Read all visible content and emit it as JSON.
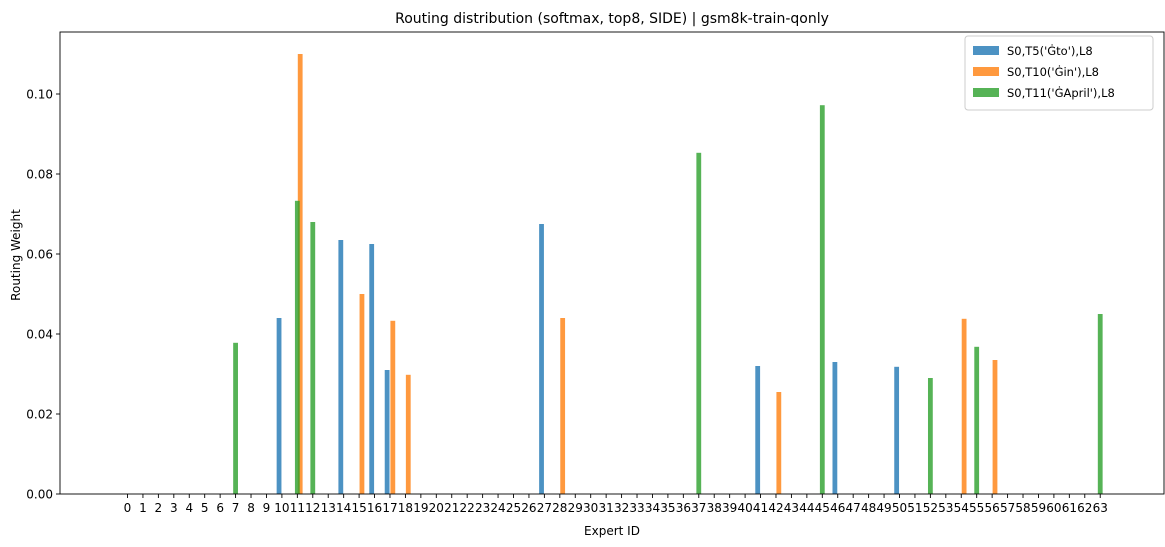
{
  "chart_data": {
    "type": "bar",
    "title": "Routing distribution (softmax, top8, SIDE) | gsm8k-train-qonly",
    "xlabel": "Expert ID",
    "ylabel": "Routing Weight",
    "ylim": [
      0,
      0.1155
    ],
    "yticks": [
      "0.00",
      "0.02",
      "0.04",
      "0.06",
      "0.08",
      "0.10"
    ],
    "categories": [
      "0",
      "1",
      "2",
      "3",
      "4",
      "5",
      "6",
      "7",
      "8",
      "9",
      "10",
      "11",
      "12",
      "13",
      "14",
      "15",
      "16",
      "17",
      "18",
      "19",
      "20",
      "21",
      "22",
      "23",
      "24",
      "25",
      "26",
      "27",
      "28",
      "29",
      "30",
      "31",
      "32",
      "33",
      "34",
      "35",
      "36",
      "37",
      "38",
      "39",
      "40",
      "41",
      "42",
      "43",
      "44",
      "45",
      "46",
      "47",
      "48",
      "49",
      "50",
      "51",
      "52",
      "53",
      "54",
      "55",
      "56",
      "57",
      "58",
      "59",
      "60",
      "61",
      "62",
      "63"
    ],
    "legend_position": "top-right",
    "grid": false,
    "series": [
      {
        "name": "S0,T5('Ġto'),L8",
        "color": "#1f77b4",
        "points": [
          {
            "expert": 10,
            "value": 0.044
          },
          {
            "expert": 14,
            "value": 0.0635
          },
          {
            "expert": 16,
            "value": 0.0625
          },
          {
            "expert": 17,
            "value": 0.031
          },
          {
            "expert": 27,
            "value": 0.0675
          },
          {
            "expert": 41,
            "value": 0.032
          },
          {
            "expert": 46,
            "value": 0.033
          },
          {
            "expert": 50,
            "value": 0.0318
          }
        ]
      },
      {
        "name": "S0,T10('Ġin'),L8",
        "color": "#ff7f0e",
        "points": [
          {
            "expert": 11,
            "value": 0.11
          },
          {
            "expert": 15,
            "value": 0.05
          },
          {
            "expert": 17,
            "value": 0.0433
          },
          {
            "expert": 18,
            "value": 0.0298
          },
          {
            "expert": 28,
            "value": 0.044
          },
          {
            "expert": 42,
            "value": 0.0255
          },
          {
            "expert": 54,
            "value": 0.0438
          },
          {
            "expert": 56,
            "value": 0.0335
          }
        ]
      },
      {
        "name": "S0,T11('ĠApril'),L8",
        "color": "#2ca02c",
        "points": [
          {
            "expert": 7,
            "value": 0.0378
          },
          {
            "expert": 11,
            "value": 0.0733
          },
          {
            "expert": 12,
            "value": 0.068
          },
          {
            "expert": 37,
            "value": 0.0853
          },
          {
            "expert": 45,
            "value": 0.0972
          },
          {
            "expert": 52,
            "value": 0.029
          },
          {
            "expert": 55,
            "value": 0.0368
          },
          {
            "expert": 63,
            "value": 0.045
          }
        ]
      }
    ]
  }
}
